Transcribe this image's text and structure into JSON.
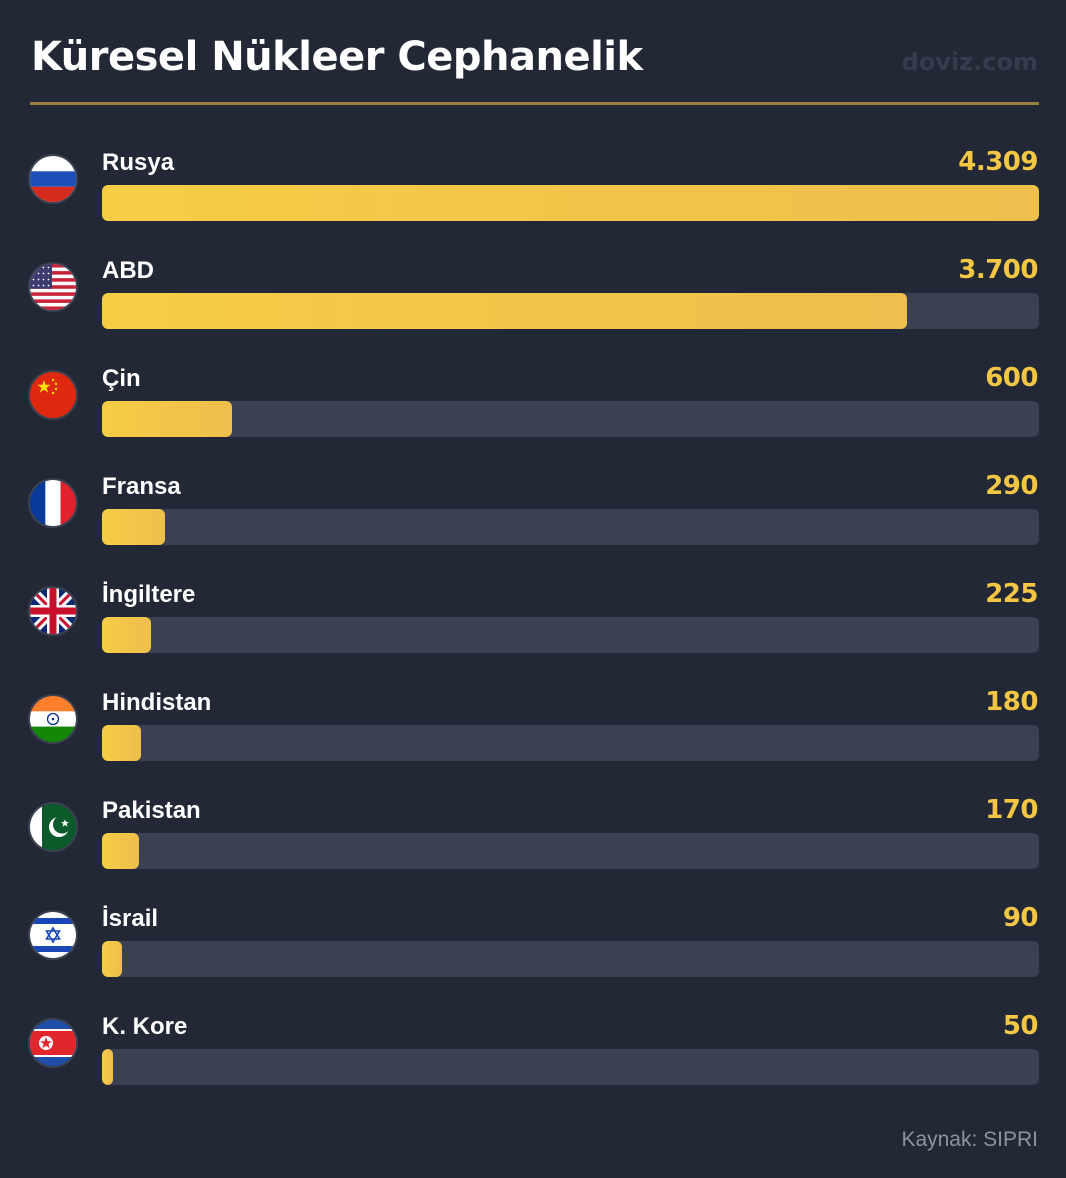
{
  "header": {
    "title": "Küresel Nükleer Cephanelik",
    "brand": "doviz.com"
  },
  "chart_data": {
    "type": "bar",
    "orientation": "horizontal",
    "title": "Küresel Nükleer Cephanelik",
    "categories": [
      "Rusya",
      "ABD",
      "Çin",
      "Fransa",
      "İngiltere",
      "Hindistan",
      "Pakistan",
      "İsrail",
      "K. Kore"
    ],
    "values": [
      4309,
      3700,
      600,
      290,
      225,
      180,
      170,
      90,
      50
    ],
    "value_labels": [
      "4.309",
      "3.700",
      "600",
      "290",
      "225",
      "180",
      "170",
      "90",
      "50"
    ],
    "flags": [
      "russia-flag-icon",
      "usa-flag-icon",
      "china-flag-icon",
      "france-flag-icon",
      "uk-flag-icon",
      "india-flag-icon",
      "pakistan-flag-icon",
      "israel-flag-icon",
      "north-korea-flag-icon"
    ],
    "xlim": [
      0,
      4309
    ],
    "grid": false,
    "legend": "none"
  },
  "footer": {
    "source": "Kaynak: SIPRI"
  },
  "colors": {
    "background": "#222836",
    "bar_fill": "#f3c744",
    "bar_track": "#3b4152",
    "value_text": "#f3c744",
    "divider": "#9a8040"
  }
}
